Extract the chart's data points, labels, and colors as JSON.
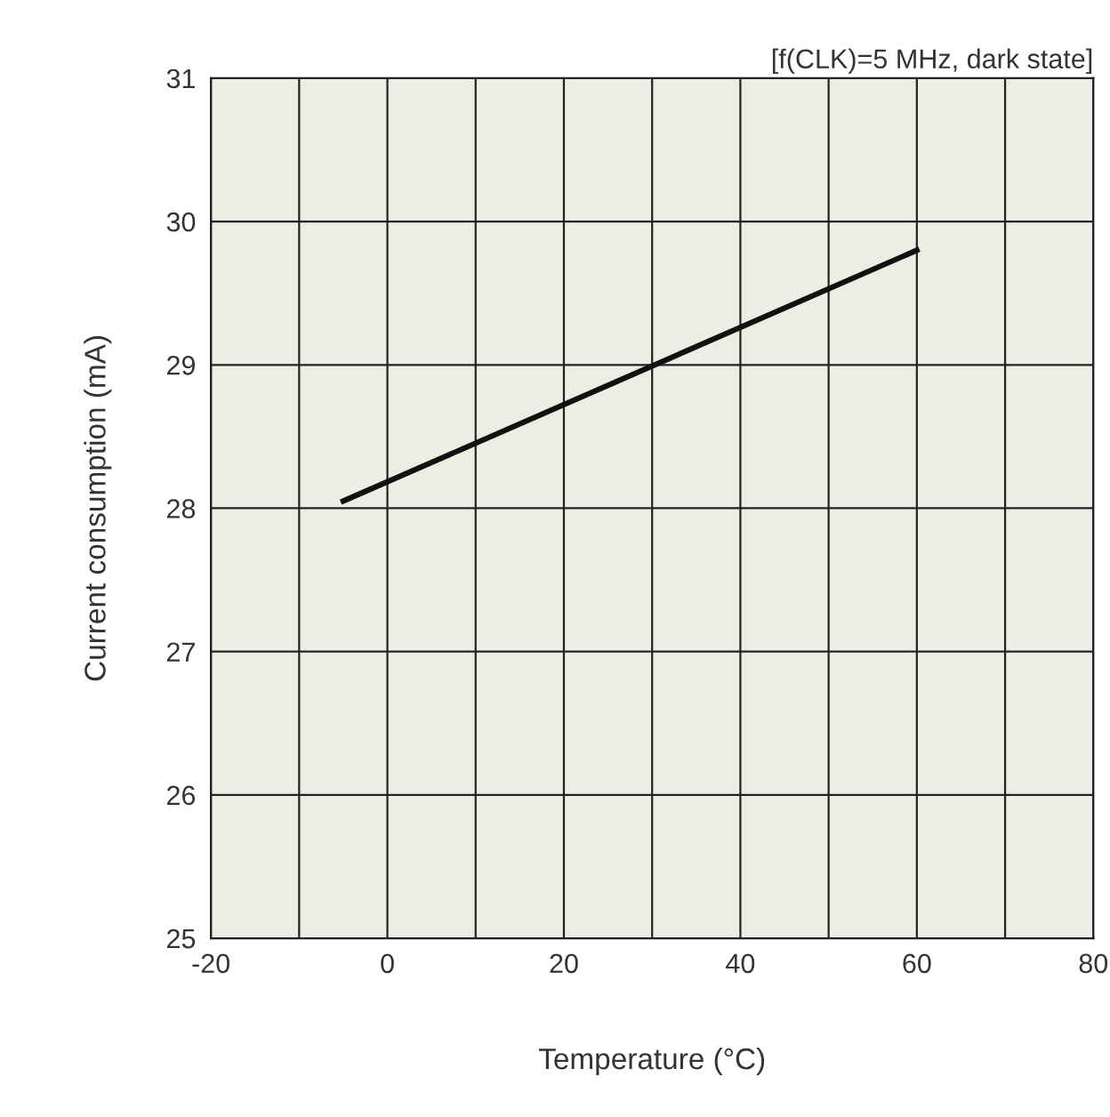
{
  "chart_data": {
    "type": "line",
    "xlabel": "Temperature (°C)",
    "ylabel": "Current consumption (mA)",
    "annotations": [
      "[f(CLK)=5 MHz, dark state]"
    ],
    "x": [
      -5,
      60
    ],
    "series": [
      {
        "color": "#111111",
        "values": [
          28.05,
          29.8
        ]
      }
    ],
    "xlim": [
      -20,
      80
    ],
    "xticks": [
      -20,
      {
        "value": -10,
        "label": null
      },
      0,
      {
        "value": 10,
        "label": null
      },
      20,
      {
        "value": 30,
        "label": null
      },
      40,
      {
        "value": 50,
        "label": null
      },
      60,
      {
        "value": 70,
        "label": null
      },
      80
    ],
    "ylim": [
      25,
      31
    ],
    "yticks": [
      25,
      26,
      27,
      28,
      29,
      30,
      31
    ],
    "grid": true,
    "marker": "none",
    "line_style": "solid"
  }
}
